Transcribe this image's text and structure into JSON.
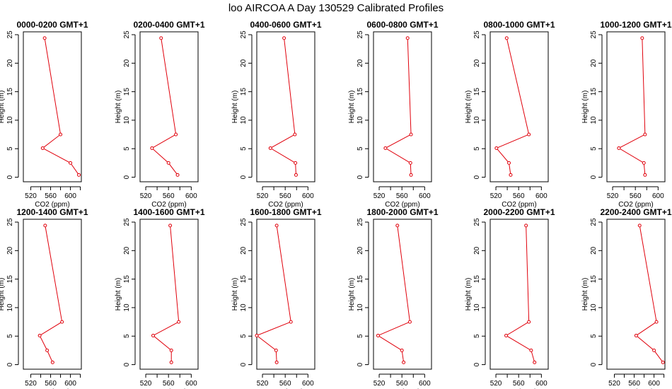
{
  "title": "loo AIRCOA A  Day 130529  Calibrated Profiles",
  "colors": {
    "series": "#e0000b",
    "axis": "#000000"
  },
  "chart_data": [
    {
      "type": "line",
      "title": "0000-0200 GMT+1",
      "xlabel": "CO2 (ppm)",
      "ylabel": "Height (m)",
      "xlim": [
        505,
        622
      ],
      "ylim": [
        -0.8,
        25.5
      ],
      "xticks": [
        520,
        540,
        560,
        580,
        600,
        620
      ],
      "yticks": [
        0,
        5,
        10,
        15,
        20,
        25
      ],
      "grid": false,
      "series": [
        {
          "x": [
            548,
            580,
            544,
            600,
            617
          ],
          "y": [
            24.4,
            7.5,
            5.1,
            2.5,
            0.4
          ]
        }
      ]
    },
    {
      "type": "line",
      "title": "0200-0400 GMT+1",
      "xlabel": "CO2 (ppm)",
      "ylabel": "Height (m)",
      "xlim": [
        510,
        612
      ],
      "ylim": [
        -0.8,
        25.5
      ],
      "xticks": [
        520,
        540,
        560,
        580,
        600
      ],
      "yticks": [
        0,
        5,
        10,
        15,
        20,
        25
      ],
      "grid": false,
      "series": [
        {
          "x": [
            547,
            573,
            531,
            560,
            576
          ],
          "y": [
            24.4,
            7.5,
            5.1,
            2.5,
            0.4
          ]
        }
      ]
    },
    {
      "type": "line",
      "title": "0400-0600 GMT+1",
      "xlabel": "CO2 (ppm)",
      "ylabel": "Height (m)",
      "xlim": [
        510,
        612
      ],
      "ylim": [
        -0.8,
        25.5
      ],
      "xticks": [
        520,
        540,
        560,
        580,
        600
      ],
      "yticks": [
        0,
        5,
        10,
        15,
        20,
        25
      ],
      "grid": false,
      "series": [
        {
          "x": [
            558,
            577,
            534,
            578,
            579
          ],
          "y": [
            24.4,
            7.5,
            5.1,
            2.5,
            0.4
          ]
        }
      ]
    },
    {
      "type": "line",
      "title": "0600-0800 GMT+1",
      "xlabel": "CO2 (ppm)",
      "ylabel": "Height (m)",
      "xlim": [
        510,
        612
      ],
      "ylim": [
        -0.8,
        25.5
      ],
      "xticks": [
        520,
        540,
        560,
        580,
        600
      ],
      "yticks": [
        0,
        5,
        10,
        15,
        20,
        25
      ],
      "grid": false,
      "series": [
        {
          "x": [
            570,
            576,
            531,
            575,
            576
          ],
          "y": [
            24.4,
            7.5,
            5.1,
            2.5,
            0.4
          ]
        }
      ]
    },
    {
      "type": "line",
      "title": "0800-1000 GMT+1",
      "xlabel": "CO2 (ppm)",
      "ylabel": "Height (m)",
      "xlim": [
        510,
        612
      ],
      "ylim": [
        -0.8,
        25.5
      ],
      "xticks": [
        520,
        540,
        560,
        580,
        600
      ],
      "yticks": [
        0,
        5,
        10,
        15,
        20,
        25
      ],
      "grid": false,
      "series": [
        {
          "x": [
            539,
            578,
            521,
            543,
            546
          ],
          "y": [
            24.4,
            7.5,
            5.1,
            2.5,
            0.4
          ]
        }
      ]
    },
    {
      "type": "line",
      "title": "1000-1200 GMT+1",
      "xlabel": "CO2 (ppm)",
      "ylabel": "Height (m)",
      "xlim": [
        510,
        612
      ],
      "ylim": [
        -0.8,
        25.5
      ],
      "xticks": [
        520,
        540,
        560,
        580,
        600
      ],
      "yticks": [
        0,
        5,
        10,
        15,
        20,
        25
      ],
      "grid": false,
      "series": [
        {
          "x": [
            572,
            577,
            531,
            575,
            577
          ],
          "y": [
            24.4,
            7.5,
            5.1,
            2.5,
            0.4
          ]
        }
      ]
    },
    {
      "type": "line",
      "title": "1200-1400 GMT+1",
      "xlabel": "CO2 (ppm)",
      "ylabel": "Height (m)",
      "xlim": [
        505,
        622
      ],
      "ylim": [
        -0.8,
        25.5
      ],
      "xticks": [
        520,
        540,
        560,
        580,
        600,
        620
      ],
      "yticks": [
        0,
        5,
        10,
        15,
        20,
        25
      ],
      "grid": false,
      "series": [
        {
          "x": [
            549,
            583,
            538,
            553,
            564
          ],
          "y": [
            24.4,
            7.5,
            5.1,
            2.5,
            0.4
          ]
        }
      ]
    },
    {
      "type": "line",
      "title": "1400-1600 GMT+1",
      "xlabel": "CO2 (ppm)",
      "ylabel": "Height (m)",
      "xlim": [
        510,
        612
      ],
      "ylim": [
        -0.8,
        25.5
      ],
      "xticks": [
        520,
        540,
        560,
        580,
        600
      ],
      "yticks": [
        0,
        5,
        10,
        15,
        20,
        25
      ],
      "grid": false,
      "series": [
        {
          "x": [
            563,
            578,
            533,
            565,
            565
          ],
          "y": [
            24.4,
            7.5,
            5.1,
            2.5,
            0.4
          ]
        }
      ]
    },
    {
      "type": "line",
      "title": "1600-1800 GMT+1",
      "xlabel": "CO2 (ppm)",
      "ylabel": "Height (m)",
      "xlim": [
        510,
        612
      ],
      "ylim": [
        -0.8,
        25.5
      ],
      "xticks": [
        520,
        540,
        560,
        580,
        600
      ],
      "yticks": [
        0,
        5,
        10,
        15,
        20,
        25
      ],
      "grid": false,
      "series": [
        {
          "x": [
            545,
            570,
            510,
            544,
            545
          ],
          "y": [
            24.4,
            7.5,
            5.1,
            2.5,
            0.4
          ]
        }
      ]
    },
    {
      "type": "line",
      "title": "1800-2000 GMT+1",
      "xlabel": "CO2 (ppm)",
      "ylabel": "Height (m)",
      "xlim": [
        510,
        612
      ],
      "ylim": [
        -0.8,
        25.5
      ],
      "xticks": [
        520,
        540,
        560,
        580,
        600
      ],
      "yticks": [
        0,
        5,
        10,
        15,
        20,
        25
      ],
      "grid": false,
      "series": [
        {
          "x": [
            552,
            574,
            518,
            560,
            563
          ],
          "y": [
            24.4,
            7.5,
            5.1,
            2.5,
            0.4
          ]
        }
      ]
    },
    {
      "type": "line",
      "title": "2000-2200 GMT+1",
      "xlabel": "CO2 (ppm)",
      "ylabel": "Height (m)",
      "xlim": [
        510,
        612
      ],
      "ylim": [
        -0.8,
        25.5
      ],
      "xticks": [
        520,
        540,
        560,
        580,
        600
      ],
      "yticks": [
        0,
        5,
        10,
        15,
        20,
        25
      ],
      "grid": false,
      "series": [
        {
          "x": [
            573,
            578,
            538,
            582,
            588
          ],
          "y": [
            24.4,
            7.5,
            5.1,
            2.5,
            0.4
          ]
        }
      ]
    },
    {
      "type": "line",
      "title": "2200-2400 GMT+1",
      "xlabel": "CO2 (ppm)",
      "ylabel": "Height (m)",
      "xlim": [
        505,
        622
      ],
      "ylim": [
        -0.8,
        25.5
      ],
      "xticks": [
        520,
        540,
        560,
        580,
        600,
        620
      ],
      "yticks": [
        0,
        5,
        10,
        15,
        20,
        25
      ],
      "grid": false,
      "series": [
        {
          "x": [
            571,
            605,
            564,
            600,
            618
          ],
          "y": [
            24.4,
            7.5,
            5.1,
            2.5,
            0.4
          ]
        }
      ]
    }
  ]
}
